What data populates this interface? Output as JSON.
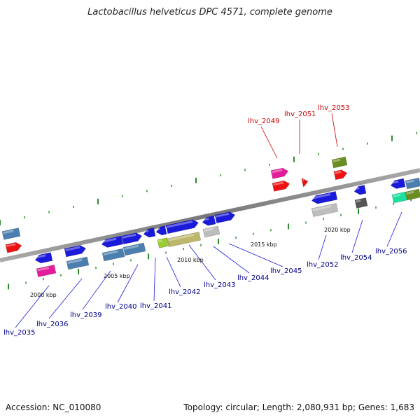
{
  "title": "Lactobacillus helveticus DPC 4571, complete genome",
  "footer": {
    "accession": "Accession: NC_010080",
    "info": "Topology: circular; Length: 2,080,931 bp; Genes: 1,683"
  },
  "colors": {
    "backbone": "#808080",
    "tick": "#2e8b2e",
    "label_blue": "#00008b",
    "label_red": "#cc0000"
  },
  "scale_labels": [
    "2000 kbp",
    "2005 kbp",
    "2010 kbp",
    "2015 kbp",
    "2020 kbp"
  ],
  "gene_labels": [
    {
      "text": "lhv_2035",
      "color": "blue"
    },
    {
      "text": "lhv_2036",
      "color": "blue"
    },
    {
      "text": "lhv_2039",
      "color": "blue"
    },
    {
      "text": "lhv_2040",
      "color": "blue"
    },
    {
      "text": "lhv_2041",
      "color": "blue"
    },
    {
      "text": "lhv_2042",
      "color": "blue"
    },
    {
      "text": "lhv_2043",
      "color": "blue"
    },
    {
      "text": "lhv_2044",
      "color": "blue"
    },
    {
      "text": "lhv_2045",
      "color": "blue"
    },
    {
      "text": "lhv_2052",
      "color": "blue"
    },
    {
      "text": "lhv_2054",
      "color": "blue"
    },
    {
      "text": "lhv_2056",
      "color": "blue"
    },
    {
      "text": "lhv_2049",
      "color": "red"
    },
    {
      "text": "lhv_2051",
      "color": "red"
    },
    {
      "text": "lhv_2053",
      "color": "red"
    }
  ],
  "gene_colors": {
    "blue": "#1a1adb",
    "steel": "#4a7fb0",
    "red": "#ee1111",
    "magenta": "#e21c9a",
    "olive": "#6b8e23",
    "khaki": "#bdb76b",
    "lime": "#9acd32",
    "silver": "#bdbdbd",
    "darkgray": "#555555",
    "teal": "#18e0a0"
  }
}
